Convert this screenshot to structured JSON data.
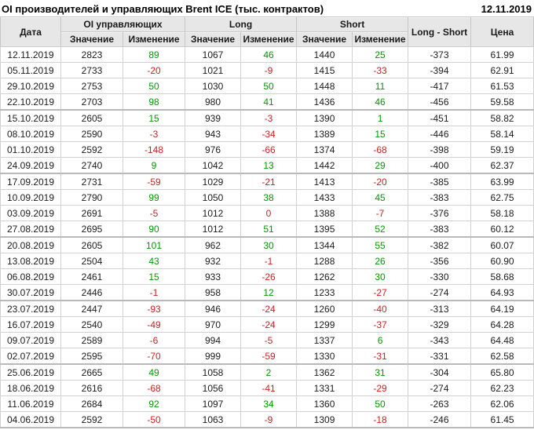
{
  "page": {
    "title": "OI производителей и управляющих Brent ICE (тыс. контрактов)",
    "report_date": "12.11.2019"
  },
  "labels": {
    "date": "Дата",
    "oi_group": "OI управляющих",
    "long_group": "Long",
    "short_group": "Short",
    "value": "Значение",
    "change": "Изменение",
    "long_short": "Long - Short",
    "price": "Цена"
  },
  "colors": {
    "positive": "#009900",
    "negative": "#cc2222",
    "header_bg": "#e7e7e7",
    "grid_line": "#d2d2d2",
    "group_line": "#b9b9b9"
  },
  "chart_data": {
    "type": "table",
    "title": "OI производителей и управляющих Brent ICE (тыс. контрактов)",
    "as_of_date": "12.11.2019",
    "group_headers": [
      "Дата",
      "OI управляющих",
      "Long",
      "Short",
      "Long - Short",
      "Цена"
    ],
    "sub_headers": [
      "Значение",
      "Изменение"
    ],
    "columns": [
      "Дата",
      "OI управляющих Значение",
      "OI управляющих Изменение",
      "Long Значение",
      "Long Изменение",
      "Short Значение",
      "Short Изменение",
      "Long - Short",
      "Цена"
    ],
    "rows": [
      [
        "12.11.2019",
        2823,
        89,
        1067,
        46,
        1440,
        25,
        -373,
        "61.99"
      ],
      [
        "05.11.2019",
        2733,
        -20,
        1021,
        -9,
        1415,
        -33,
        -394,
        "62.91"
      ],
      [
        "29.10.2019",
        2753,
        50,
        1030,
        50,
        1448,
        11,
        -417,
        "61.53"
      ],
      [
        "22.10.2019",
        2703,
        98,
        980,
        41,
        1436,
        46,
        -456,
        "59.58"
      ],
      [
        "15.10.2019",
        2605,
        15,
        939,
        -3,
        1390,
        1,
        -451,
        "58.82"
      ],
      [
        "08.10.2019",
        2590,
        -3,
        943,
        -34,
        1389,
        15,
        -446,
        "58.14"
      ],
      [
        "01.10.2019",
        2592,
        -148,
        976,
        -66,
        1374,
        -68,
        -398,
        "59.19"
      ],
      [
        "24.09.2019",
        2740,
        9,
        1042,
        13,
        1442,
        29,
        -400,
        "62.37"
      ],
      [
        "17.09.2019",
        2731,
        -59,
        1029,
        -21,
        1413,
        -20,
        -385,
        "63.99"
      ],
      [
        "10.09.2019",
        2790,
        99,
        1050,
        38,
        1433,
        45,
        -383,
        "62.75"
      ],
      [
        "03.09.2019",
        2691,
        -5,
        1012,
        0,
        1388,
        -7,
        -376,
        "58.18"
      ],
      [
        "27.08.2019",
        2695,
        90,
        1012,
        51,
        1395,
        52,
        -383,
        "60.12"
      ],
      [
        "20.08.2019",
        2605,
        101,
        962,
        30,
        1344,
        55,
        -382,
        "60.07"
      ],
      [
        "13.08.2019",
        2504,
        43,
        932,
        -1,
        1288,
        26,
        -356,
        "60.90"
      ],
      [
        "06.08.2019",
        2461,
        15,
        933,
        -26,
        1262,
        30,
        -330,
        "58.68"
      ],
      [
        "30.07.2019",
        2446,
        -1,
        958,
        12,
        1233,
        -27,
        -274,
        "64.93"
      ],
      [
        "23.07.2019",
        2447,
        -93,
        946,
        -24,
        1260,
        -40,
        -313,
        "64.19"
      ],
      [
        "16.07.2019",
        2540,
        -49,
        970,
        -24,
        1299,
        -37,
        -329,
        "64.28"
      ],
      [
        "09.07.2019",
        2589,
        -6,
        994,
        -5,
        1337,
        6,
        -343,
        "64.48"
      ],
      [
        "02.07.2019",
        2595,
        -70,
        999,
        -59,
        1330,
        -31,
        -331,
        "62.58"
      ],
      [
        "25.06.2019",
        2665,
        49,
        1058,
        2,
        1362,
        31,
        -304,
        "65.80"
      ],
      [
        "18.06.2019",
        2616,
        -68,
        1056,
        -41,
        1331,
        -29,
        -274,
        "62.23"
      ],
      [
        "11.06.2019",
        2684,
        92,
        1097,
        34,
        1360,
        50,
        -263,
        "62.06"
      ],
      [
        "04.06.2019",
        2592,
        -50,
        1063,
        -9,
        1309,
        -18,
        -246,
        "61.45"
      ]
    ]
  }
}
